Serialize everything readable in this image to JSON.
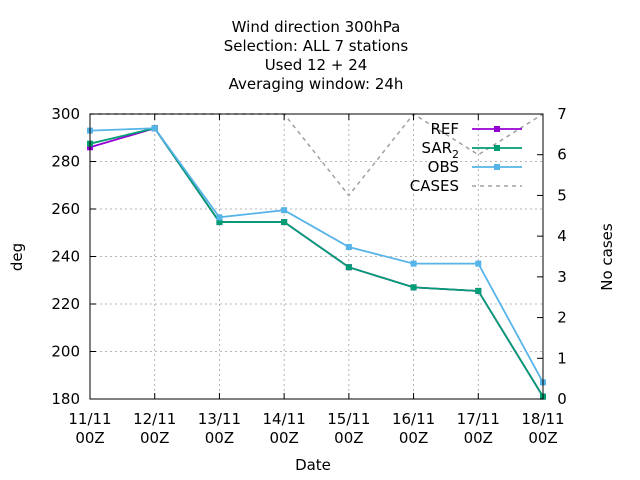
{
  "chart_data": {
    "type": "line",
    "title_lines": [
      "Wind direction 300hPa",
      "Selection: ALL      7 stations",
      "Used  12 + 24",
      "Averaging window: 24h"
    ],
    "xlabel": "Date",
    "ylabel": "deg",
    "y2label": "No cases",
    "categories": [
      [
        "11/11",
        "00Z"
      ],
      [
        "12/11",
        "00Z"
      ],
      [
        "13/11",
        "00Z"
      ],
      [
        "14/11",
        "00Z"
      ],
      [
        "15/11",
        "00Z"
      ],
      [
        "16/11",
        "00Z"
      ],
      [
        "17/11",
        "00Z"
      ],
      [
        "18/11",
        "00Z"
      ]
    ],
    "ylim": [
      180,
      300
    ],
    "yticks": [
      180,
      200,
      220,
      240,
      260,
      280,
      300
    ],
    "y2lim": [
      0,
      7
    ],
    "y2ticks": [
      0,
      1,
      2,
      3,
      4,
      5,
      6,
      7
    ],
    "grid": true,
    "legend_position": "top-right",
    "series": [
      {
        "name": "REF",
        "axis": "y",
        "color": "#9400d3",
        "marker": "square",
        "values": [
          286,
          294,
          254.5,
          254.5,
          235.5,
          227,
          225.5,
          181
        ]
      },
      {
        "name": "SAR_2",
        "name_main": "SAR",
        "name_sub": "2",
        "axis": "y",
        "color": "#009e73",
        "marker": "square",
        "values": [
          287.5,
          294,
          254.5,
          254.5,
          235.5,
          227,
          225.5,
          181
        ]
      },
      {
        "name": "OBS",
        "axis": "y",
        "color": "#56b4e9",
        "marker": "square",
        "values": [
          293,
          294,
          256.5,
          259.5,
          244,
          237,
          237,
          187
        ]
      },
      {
        "name": "CASES",
        "axis": "y2",
        "color": "#a0a0a0",
        "dashed": true,
        "values": [
          7,
          7,
          7,
          7,
          5,
          7,
          6,
          7
        ]
      }
    ]
  }
}
